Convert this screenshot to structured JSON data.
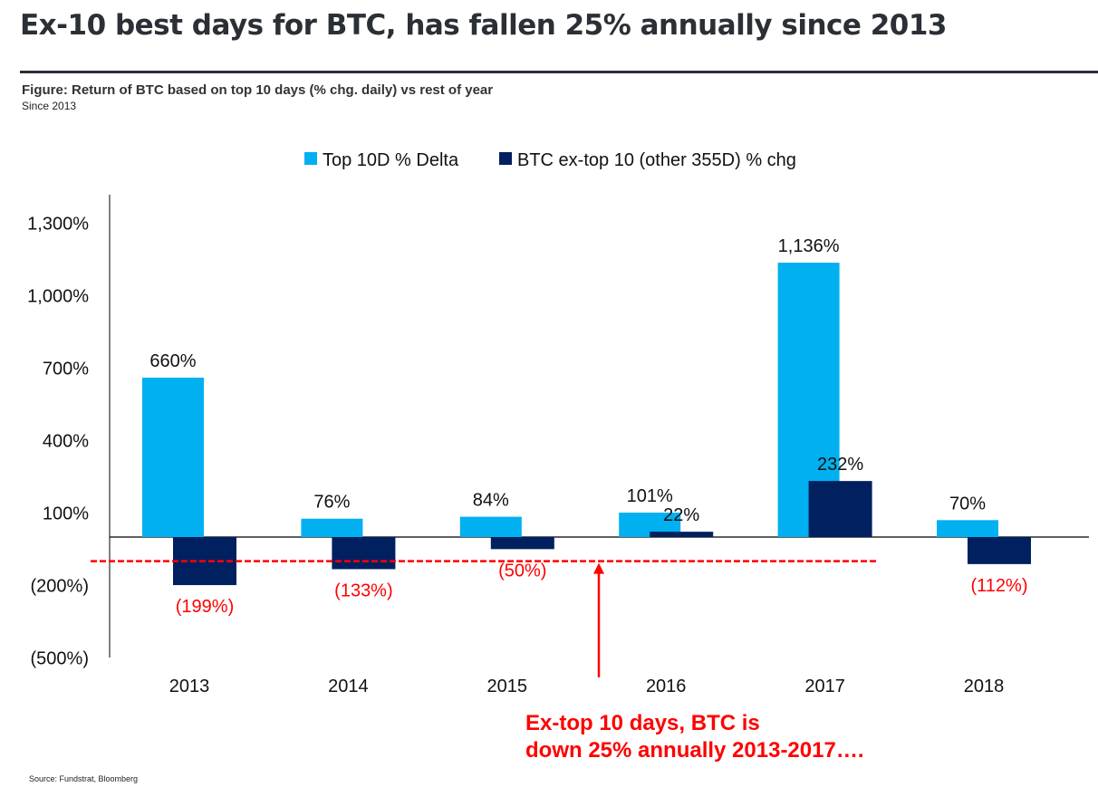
{
  "title": "Ex-10 best days for BTC, has fallen 25% annually since 2013",
  "subtitle": "Figure: Return of BTC based on top 10 days (% chg. daily) vs rest of year",
  "note": "Since 2013",
  "source": "Source: Fundstrat, Bloomberg",
  "chart_data": {
    "type": "bar",
    "categories": [
      "2013",
      "2014",
      "2015",
      "2016",
      "2017",
      "2018"
    ],
    "series": [
      {
        "name": "Top 10D % Delta",
        "color": "#00b0f0",
        "values": [
          660,
          76,
          84,
          101,
          1136,
          70
        ],
        "labels": [
          "660%",
          "76%",
          "84%",
          "101%",
          "1,136%",
          "70%"
        ]
      },
      {
        "name": "BTC ex-top 10 (other 355D) % chg",
        "color": "#002060",
        "values": [
          -199,
          -133,
          -50,
          22,
          232,
          -112
        ],
        "labels": [
          "(199%)",
          "(133%)",
          "(50%)",
          "22%",
          "232%",
          "(112%)"
        ]
      }
    ],
    "yticks": [
      1300,
      1000,
      700,
      400,
      100,
      -200,
      -500
    ],
    "ytick_labels": [
      "1,300%",
      "1,000%",
      "700%",
      "400%",
      "100%",
      "(200%)",
      "(500%)"
    ],
    "ylim": [
      -500,
      1300
    ],
    "negative_label_color": "#ff0000",
    "legend_position": "top",
    "grid": false,
    "reference_line": {
      "value": -100,
      "style": "dashed",
      "color": "#ff0000"
    },
    "annotation": {
      "lines": [
        "Ex-top 10 days, BTC is",
        "down 25% annually 2013-2017…."
      ],
      "color": "#ff0000"
    }
  }
}
